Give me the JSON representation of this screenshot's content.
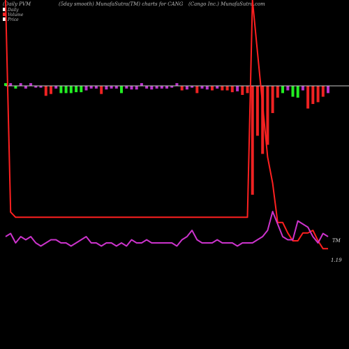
{
  "header": {
    "left": "(Daily PVM",
    "middle": "(5day smooth) MunafaSutra(TM) charts for CANG",
    "right": "(Cango  Inc.) MunafaSutra.com"
  },
  "legend": {
    "items": [
      {
        "label": "Daily",
        "color": "#ffffff"
      },
      {
        "label": "Volume",
        "color": "#ff2a2a"
      },
      {
        "label": "Price",
        "color": "#ffffff"
      }
    ]
  },
  "labels": {
    "tm": "TM",
    "price": "1.19"
  },
  "colors": {
    "background": "#000000",
    "baseline": "#c8c8c8",
    "price_line": "#ff2020",
    "volume_line": "#cc33cc",
    "bar_green": "#22ee22",
    "bar_red": "#ee2222",
    "bar_magenta": "#bb33cc"
  },
  "chart_data": {
    "type": "bar",
    "series": [
      {
        "name": "Volume",
        "values": [
          8,
          9,
          6,
          8,
          7,
          8,
          6,
          5,
          6,
          7,
          7,
          6,
          6,
          5,
          6,
          7,
          8,
          6,
          6,
          5,
          6,
          6,
          5,
          6,
          5,
          7,
          6,
          6,
          7,
          6,
          6,
          6,
          6,
          6,
          5,
          7,
          8,
          10,
          7,
          6,
          6,
          6,
          7,
          6,
          6,
          6,
          5,
          6,
          6,
          6,
          7,
          8,
          10,
          16,
          12,
          8,
          7,
          7,
          13,
          12,
          11,
          8,
          6,
          9,
          8
        ]
      },
      {
        "name": "Price",
        "values": [
          100,
          19,
          17,
          17,
          17,
          17,
          17,
          17,
          17,
          17,
          17,
          17,
          17,
          17,
          17,
          17,
          17,
          17,
          17,
          17,
          17,
          17,
          17,
          17,
          17,
          17,
          17,
          17,
          17,
          17,
          17,
          17,
          17,
          17,
          17,
          17,
          17,
          17,
          17,
          17,
          17,
          17,
          17,
          17,
          17,
          17,
          17,
          17,
          17,
          100,
          80,
          60,
          40,
          30,
          15,
          15,
          11,
          8,
          8,
          11,
          11,
          12,
          8,
          5,
          5
        ]
      }
    ],
    "pvm_bars": [
      {
        "value": 3,
        "color": "green"
      },
      {
        "value": 3,
        "color": "magenta"
      },
      {
        "value": -3,
        "color": "green"
      },
      {
        "value": 3,
        "color": "magenta"
      },
      {
        "value": -3,
        "color": "magenta"
      },
      {
        "value": 3,
        "color": "magenta"
      },
      {
        "value": -2,
        "color": "magenta"
      },
      {
        "value": -2,
        "color": "magenta"
      },
      {
        "value": -11,
        "color": "red"
      },
      {
        "value": -9,
        "color": "red"
      },
      {
        "value": -3,
        "color": "magenta"
      },
      {
        "value": -8,
        "color": "green"
      },
      {
        "value": -8,
        "color": "green"
      },
      {
        "value": -8,
        "color": "green"
      },
      {
        "value": -7,
        "color": "green"
      },
      {
        "value": -7,
        "color": "green"
      },
      {
        "value": -5,
        "color": "magenta"
      },
      {
        "value": -3,
        "color": "magenta"
      },
      {
        "value": -3,
        "color": "magenta"
      },
      {
        "value": -9,
        "color": "red"
      },
      {
        "value": -4,
        "color": "magenta"
      },
      {
        "value": -3,
        "color": "magenta"
      },
      {
        "value": -3,
        "color": "magenta"
      },
      {
        "value": -8,
        "color": "green"
      },
      {
        "value": -3,
        "color": "magenta"
      },
      {
        "value": -4,
        "color": "magenta"
      },
      {
        "value": -4,
        "color": "magenta"
      },
      {
        "value": 3,
        "color": "magenta"
      },
      {
        "value": -3,
        "color": "magenta"
      },
      {
        "value": -4,
        "color": "magenta"
      },
      {
        "value": -3,
        "color": "magenta"
      },
      {
        "value": -3,
        "color": "magenta"
      },
      {
        "value": -3,
        "color": "magenta"
      },
      {
        "value": -2,
        "color": "magenta"
      },
      {
        "value": 3,
        "color": "magenta"
      },
      {
        "value": -5,
        "color": "red"
      },
      {
        "value": -4,
        "color": "magenta"
      },
      {
        "value": -2,
        "color": "magenta"
      },
      {
        "value": -8,
        "color": "red"
      },
      {
        "value": -3,
        "color": "magenta"
      },
      {
        "value": -4,
        "color": "magenta"
      },
      {
        "value": -5,
        "color": "red"
      },
      {
        "value": -3,
        "color": "magenta"
      },
      {
        "value": -5,
        "color": "red"
      },
      {
        "value": -5,
        "color": "red"
      },
      {
        "value": -7,
        "color": "red"
      },
      {
        "value": -6,
        "color": "magenta"
      },
      {
        "value": -10,
        "color": "red"
      },
      {
        "value": -8,
        "color": "red"
      },
      {
        "value": -120,
        "color": "red"
      },
      {
        "value": -55,
        "color": "red"
      },
      {
        "value": -75,
        "color": "red"
      },
      {
        "value": -65,
        "color": "red"
      },
      {
        "value": -30,
        "color": "red"
      },
      {
        "value": -13,
        "color": "red"
      },
      {
        "value": -8,
        "color": "green"
      },
      {
        "value": -5,
        "color": "magenta"
      },
      {
        "value": -12,
        "color": "green"
      },
      {
        "value": -13,
        "color": "green"
      },
      {
        "value": -5,
        "color": "magenta"
      },
      {
        "value": -25,
        "color": "red"
      },
      {
        "value": -20,
        "color": "red"
      },
      {
        "value": -18,
        "color": "red"
      },
      {
        "value": -12,
        "color": "red"
      },
      {
        "value": -8,
        "color": "magenta"
      }
    ]
  }
}
